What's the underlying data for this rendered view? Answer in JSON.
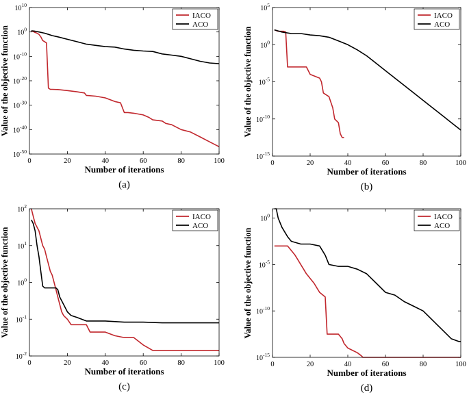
{
  "colors": {
    "iaco": "#c1272d",
    "aco": "#000000",
    "axis": "#000000",
    "background": "#ffffff"
  },
  "chart_data": [
    {
      "id": "a",
      "type": "line",
      "panel_label": "(a)",
      "xlabel": "Number of iterations",
      "ylabel": "Value of the objective function",
      "yscale": "log",
      "xlim": [
        0,
        100
      ],
      "ylim_exp": [
        -50,
        10
      ],
      "xticks": [
        {
          "v": 0,
          "label": "0"
        },
        {
          "v": 20,
          "label": "20"
        },
        {
          "v": 40,
          "label": "40"
        },
        {
          "v": 60,
          "label": "60"
        },
        {
          "v": 80,
          "label": "80"
        },
        {
          "v": 100,
          "label": "100"
        }
      ],
      "yticks": [
        {
          "v": 10,
          "base": "10",
          "exp": "10"
        },
        {
          "v": 0,
          "base": "10",
          "exp": "0"
        },
        {
          "v": -10,
          "base": "10",
          "exp": "-10"
        },
        {
          "v": -20,
          "base": "10",
          "exp": "-20"
        },
        {
          "v": -30,
          "base": "10",
          "exp": "-30"
        },
        {
          "v": -40,
          "base": "10",
          "exp": "-40"
        },
        {
          "v": -50,
          "base": "10",
          "exp": "-50"
        }
      ],
      "legend": {
        "position": "top-right",
        "entries": [
          "IACO",
          "ACO"
        ]
      },
      "series": [
        {
          "name": "IACO",
          "color": "#c1272d",
          "x": [
            1,
            2,
            3,
            4,
            5,
            6,
            7,
            8,
            9,
            10,
            11,
            12,
            15,
            20,
            25,
            29,
            30,
            35,
            40,
            45,
            48,
            50,
            52,
            55,
            60,
            63,
            65,
            70,
            72,
            75,
            80,
            85,
            90,
            95,
            100
          ],
          "y": [
            0.3,
            0.2,
            -0.2,
            -0.5,
            -1,
            -2,
            -3.5,
            -4,
            -4.5,
            -23,
            -23.5,
            -23.5,
            -23.6,
            -24,
            -24.5,
            -25,
            -26,
            -26.3,
            -27,
            -28.5,
            -29,
            -33,
            -33,
            -33.3,
            -34,
            -35,
            -36,
            -36.5,
            -37.5,
            -38,
            -40,
            -41,
            -43,
            -45,
            -47
          ]
        },
        {
          "name": "ACO",
          "color": "#000000",
          "x": [
            1,
            3,
            5,
            8,
            10,
            12,
            15,
            20,
            25,
            30,
            35,
            40,
            45,
            50,
            55,
            60,
            65,
            70,
            75,
            80,
            85,
            90,
            95,
            100
          ],
          "y": [
            0.5,
            0.3,
            0,
            -0.5,
            -1,
            -1.5,
            -2,
            -3,
            -4,
            -5,
            -5.5,
            -6,
            -6.2,
            -7,
            -7.5,
            -7.8,
            -8,
            -9,
            -9.5,
            -10,
            -11,
            -12,
            -12.7,
            -13
          ]
        }
      ]
    },
    {
      "id": "b",
      "type": "line",
      "panel_label": "(b)",
      "xlabel": "Number of iterations",
      "ylabel": "Value of the objective function",
      "yscale": "log",
      "xlim": [
        0,
        100
      ],
      "ylim_exp": [
        -15,
        5
      ],
      "xticks": [
        {
          "v": 0,
          "label": "0"
        },
        {
          "v": 20,
          "label": "20"
        },
        {
          "v": 40,
          "label": "40"
        },
        {
          "v": 60,
          "label": "60"
        },
        {
          "v": 80,
          "label": "80"
        },
        {
          "v": 100,
          "label": "100"
        }
      ],
      "yticks": [
        {
          "v": 5,
          "base": "10",
          "exp": "5"
        },
        {
          "v": 0,
          "base": "10",
          "exp": "0"
        },
        {
          "v": -5,
          "base": "10",
          "exp": "-5"
        },
        {
          "v": -10,
          "base": "10",
          "exp": "-10"
        },
        {
          "v": -15,
          "base": "10",
          "exp": "-15"
        }
      ],
      "legend": {
        "position": "top-right",
        "entries": [
          "IACO",
          "ACO"
        ]
      },
      "series": [
        {
          "name": "IACO",
          "color": "#c1272d",
          "x": [
            1,
            3,
            6,
            7,
            8,
            10,
            15,
            18,
            20,
            25,
            26,
            27,
            30,
            32,
            33,
            35,
            36,
            37,
            38
          ],
          "y": [
            2,
            1.8,
            1.8,
            1.7,
            -3,
            -3,
            -3,
            -3,
            -4,
            -4.5,
            -5,
            -6.5,
            -7,
            -8.5,
            -10,
            -10.5,
            -12,
            -12.5,
            -12.5
          ]
        },
        {
          "name": "ACO",
          "color": "#000000",
          "x": [
            1,
            5,
            10,
            15,
            20,
            25,
            30,
            35,
            40,
            45,
            50,
            55,
            60,
            65,
            70,
            75,
            80,
            85,
            90,
            95,
            100
          ],
          "y": [
            2,
            1.7,
            1.5,
            1.5,
            1.3,
            1.2,
            1,
            0.5,
            0,
            -0.7,
            -1.5,
            -2.5,
            -3.5,
            -4.5,
            -5.5,
            -6.5,
            -7.5,
            -8.5,
            -9.5,
            -10.5,
            -11.5
          ]
        }
      ]
    },
    {
      "id": "c",
      "type": "line",
      "panel_label": "(c)",
      "xlabel": "Number of iterations",
      "ylabel": "Value of the objective function",
      "yscale": "log",
      "xlim": [
        0,
        100
      ],
      "ylim_exp": [
        -2,
        2
      ],
      "xticks": [
        {
          "v": 0,
          "label": "0"
        },
        {
          "v": 20,
          "label": "20"
        },
        {
          "v": 40,
          "label": "40"
        },
        {
          "v": 60,
          "label": "60"
        },
        {
          "v": 80,
          "label": "80"
        },
        {
          "v": 100,
          "label": "100"
        }
      ],
      "yticks": [
        {
          "v": 2,
          "base": "10",
          "exp": "2"
        },
        {
          "v": 1,
          "base": "10",
          "exp": "1"
        },
        {
          "v": 0,
          "base": "10",
          "exp": "0"
        },
        {
          "v": -1,
          "base": "10",
          "exp": "-1"
        },
        {
          "v": -2,
          "base": "10",
          "exp": "-2"
        }
      ],
      "legend": {
        "position": "top-right",
        "entries": [
          "IACO",
          "ACO"
        ]
      },
      "series": [
        {
          "name": "IACO",
          "color": "#c1272d",
          "x": [
            1,
            2,
            3,
            4,
            5,
            6,
            7,
            8,
            9,
            10,
            11,
            12,
            13,
            14,
            15,
            16,
            17,
            18,
            20,
            22,
            25,
            30,
            32,
            35,
            40,
            45,
            50,
            55,
            60,
            65,
            70,
            80,
            90,
            100
          ],
          "y": [
            2,
            1.8,
            1.6,
            1.5,
            1.4,
            1.2,
            1,
            0.9,
            0.7,
            0.5,
            0.3,
            0.2,
            0,
            -0.2,
            -0.4,
            -0.6,
            -0.8,
            -0.9,
            -1,
            -1.15,
            -1.15,
            -1.15,
            -1.35,
            -1.35,
            -1.35,
            -1.45,
            -1.5,
            -1.5,
            -1.7,
            -1.85,
            -1.85,
            -1.85,
            -1.85,
            -1.85
          ]
        },
        {
          "name": "ACO",
          "color": "#000000",
          "x": [
            1,
            2,
            3,
            4,
            5,
            6,
            7,
            8,
            10,
            12,
            14,
            15,
            16,
            18,
            20,
            22,
            25,
            30,
            35,
            40,
            50,
            60,
            70,
            80,
            90,
            100
          ],
          "y": [
            1.7,
            1.6,
            1.4,
            1,
            0.7,
            0.3,
            -0.1,
            -0.15,
            -0.15,
            -0.15,
            -0.15,
            -0.2,
            -0.4,
            -0.6,
            -0.8,
            -0.9,
            -0.95,
            -1.05,
            -1.05,
            -1.05,
            -1.08,
            -1.08,
            -1.1,
            -1.1,
            -1.1,
            -1.1
          ]
        }
      ]
    },
    {
      "id": "d",
      "type": "line",
      "panel_label": "(d)",
      "xlabel": "Number of iterations",
      "ylabel": "Value of the objective function",
      "yscale": "log",
      "xlim": [
        0,
        100
      ],
      "ylim_exp": [
        -15,
        1
      ],
      "xticks": [
        {
          "v": 0,
          "label": "0"
        },
        {
          "v": 20,
          "label": "20"
        },
        {
          "v": 40,
          "label": "40"
        },
        {
          "v": 60,
          "label": "60"
        },
        {
          "v": 80,
          "label": "80"
        },
        {
          "v": 100,
          "label": "100"
        }
      ],
      "yticks": [
        {
          "v": 0,
          "base": "10",
          "exp": "0"
        },
        {
          "v": -5,
          "base": "10",
          "exp": "-5"
        },
        {
          "v": -10,
          "base": "10",
          "exp": "-10"
        },
        {
          "v": -15,
          "base": "10",
          "exp": "-15"
        }
      ],
      "legend": {
        "position": "top-right",
        "entries": [
          "IACO",
          "ACO"
        ]
      },
      "series": [
        {
          "name": "IACO",
          "color": "#c1272d",
          "x": [
            1,
            5,
            8,
            10,
            12,
            15,
            18,
            20,
            22,
            25,
            28,
            29,
            30,
            35,
            37,
            38,
            40,
            42,
            45,
            47,
            48,
            50,
            60,
            70,
            80,
            90,
            100
          ],
          "y": [
            -3,
            -3,
            -3,
            -3.5,
            -4,
            -5,
            -6,
            -6.5,
            -7,
            -8,
            -8.5,
            -12.5,
            -12.5,
            -12.5,
            -13,
            -13.5,
            -14,
            -14.2,
            -14.5,
            -14.8,
            -15,
            -15,
            -15,
            -15,
            -15,
            -15,
            -15
          ]
        },
        {
          "name": "ACO",
          "color": "#000000",
          "x": [
            1,
            2,
            3,
            5,
            8,
            10,
            15,
            20,
            25,
            28,
            30,
            35,
            40,
            45,
            50,
            55,
            60,
            65,
            70,
            75,
            80,
            85,
            90,
            95,
            99,
            100
          ],
          "y": [
            1,
            1,
            0,
            -1,
            -2,
            -2.5,
            -2.8,
            -2.8,
            -3,
            -4,
            -5,
            -5.2,
            -5.2,
            -5.5,
            -6,
            -7,
            -8,
            -8.3,
            -9,
            -9.5,
            -10,
            -11,
            -12,
            -13,
            -13.3,
            -13.3
          ]
        }
      ]
    }
  ]
}
